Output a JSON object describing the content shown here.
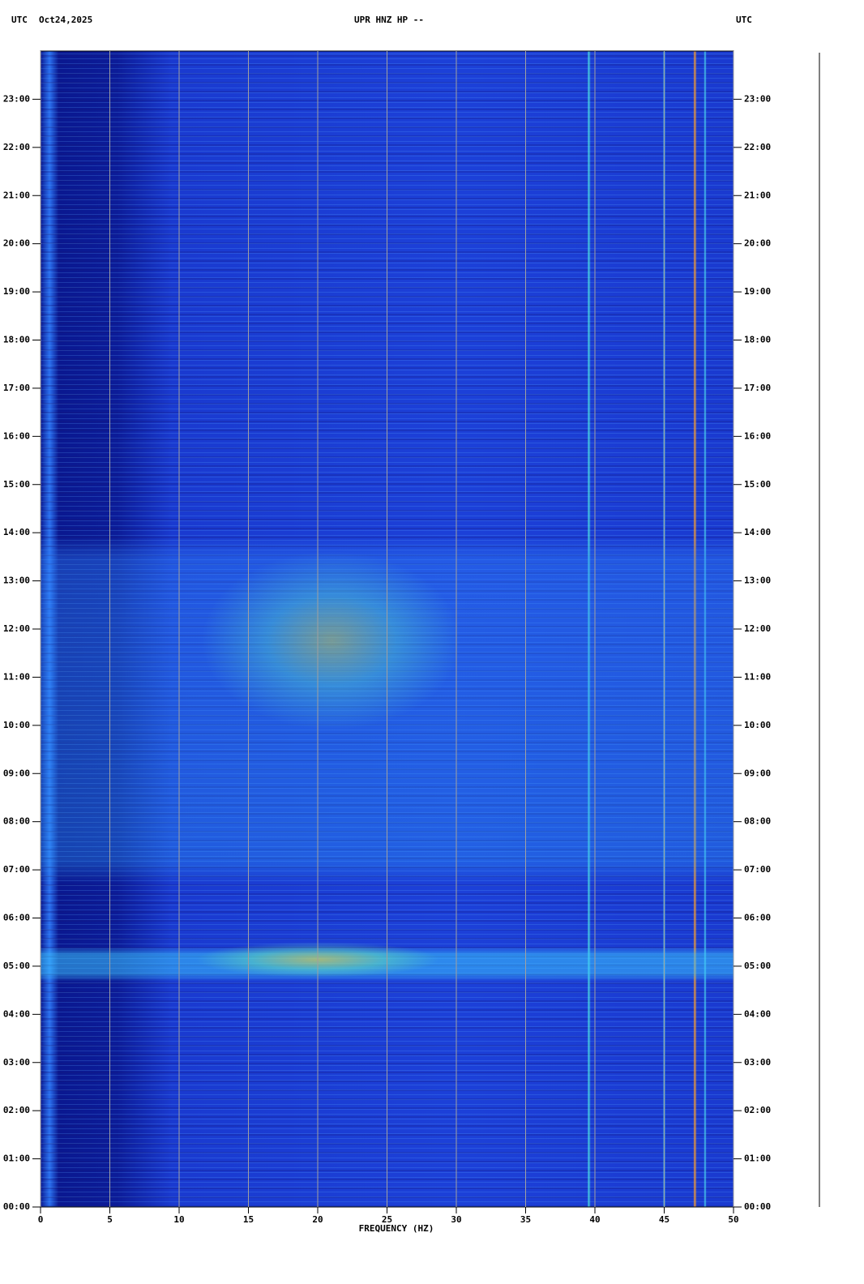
{
  "chart_data": {
    "type": "spectrogram",
    "header_left_tz": "UTC",
    "header_date": "Oct24,2025",
    "title": "UPR HNZ HP --",
    "header_right_tz": "UTC",
    "xlabel": "FREQUENCY (HZ)",
    "xlim": [
      0,
      50
    ],
    "xticks": [
      0,
      5,
      10,
      15,
      20,
      25,
      30,
      35,
      40,
      45,
      50
    ],
    "ylim": [
      0,
      24
    ],
    "yticks": [
      {
        "value": 0,
        "label": "00:00"
      },
      {
        "value": 1,
        "label": "01:00"
      },
      {
        "value": 2,
        "label": "02:00"
      },
      {
        "value": 3,
        "label": "03:00"
      },
      {
        "value": 4,
        "label": "04:00"
      },
      {
        "value": 5,
        "label": "05:00"
      },
      {
        "value": 6,
        "label": "06:00"
      },
      {
        "value": 7,
        "label": "07:00"
      },
      {
        "value": 8,
        "label": "08:00"
      },
      {
        "value": 9,
        "label": "09:00"
      },
      {
        "value": 10,
        "label": "10:00"
      },
      {
        "value": 11,
        "label": "11:00"
      },
      {
        "value": 12,
        "label": "12:00"
      },
      {
        "value": 13,
        "label": "13:00"
      },
      {
        "value": 14,
        "label": "14:00"
      },
      {
        "value": 15,
        "label": "15:00"
      },
      {
        "value": 16,
        "label": "16:00"
      },
      {
        "value": 17,
        "label": "17:00"
      },
      {
        "value": 18,
        "label": "18:00"
      },
      {
        "value": 19,
        "label": "19:00"
      },
      {
        "value": 20,
        "label": "20:00"
      },
      {
        "value": 21,
        "label": "21:00"
      },
      {
        "value": 22,
        "label": "22:00"
      },
      {
        "value": 23,
        "label": "23:00"
      }
    ],
    "grid": true,
    "grid_color": "#a0a0a0"
  }
}
